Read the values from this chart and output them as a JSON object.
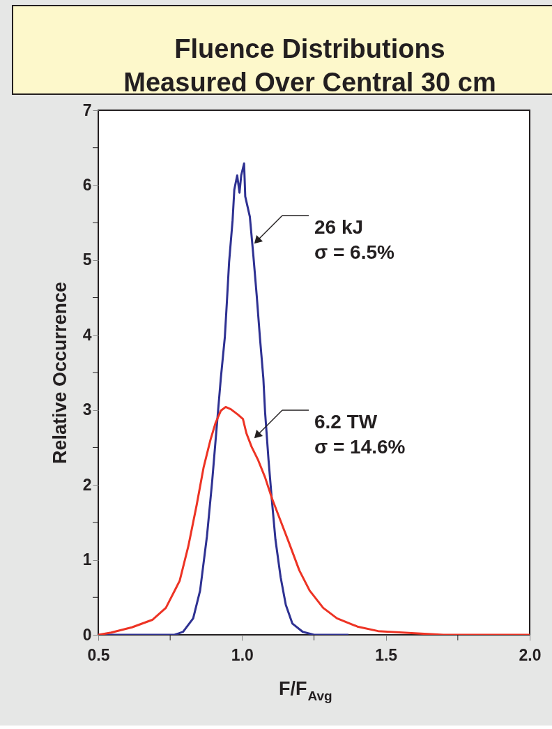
{
  "chart_data": {
    "type": "line",
    "title": "Fluence Distributions\nMeasured Over Central 30 cm",
    "xlabel": "F/F$_{Avg}$",
    "ylabel": "Relative Occurrence",
    "xlim": [
      0.5,
      2.0
    ],
    "xticks": [
      0.5,
      {
        "value": 0.75,
        "label": null
      },
      {
        "value": 1.0,
        "label": "1.0"
      },
      {
        "value": 1.25,
        "label": null
      },
      1.5,
      {
        "value": 1.75,
        "label": null
      },
      {
        "value": 2.0,
        "label": "2.0"
      }
    ],
    "ylim": [
      0,
      7
    ],
    "yticks": [
      0,
      {
        "value": 0.5,
        "label": null
      },
      1,
      {
        "value": 1.5,
        "label": null
      },
      2,
      {
        "value": 2.5,
        "label": null
      },
      3,
      {
        "value": 3.5,
        "label": null
      },
      4,
      {
        "value": 4.5,
        "label": null
      },
      5,
      {
        "value": 5.5,
        "label": null
      },
      6,
      {
        "value": 6.5,
        "label": null
      },
      7
    ],
    "grid": false,
    "legend": false,
    "line_style": "solid",
    "series": [
      {
        "color": "#2e3192",
        "x": [
          0.5,
          0.765,
          0.795,
          0.83,
          0.854,
          0.878,
          0.896,
          0.908,
          0.926,
          0.94,
          0.947,
          0.955,
          0.967,
          0.973,
          0.983,
          0.991,
          0.997,
          1.007,
          1.011,
          1.027,
          1.039,
          1.051,
          1.062,
          1.074,
          1.08,
          1.092,
          1.104,
          1.116,
          1.134,
          1.152,
          1.175,
          1.211,
          1.25,
          1.37
        ],
        "values": [
          0,
          0,
          0.04,
          0.22,
          0.59,
          1.32,
          2.05,
          2.6,
          3.42,
          3.97,
          4.43,
          4.98,
          5.53,
          5.94,
          6.13,
          5.9,
          6.13,
          6.29,
          5.85,
          5.58,
          5.07,
          4.52,
          3.97,
          3.42,
          2.97,
          2.33,
          1.78,
          1.27,
          0.77,
          0.4,
          0.15,
          0.04,
          0,
          0
        ]
      },
      {
        "color": "#ed3324",
        "x": [
          0.5,
          0.545,
          0.617,
          0.688,
          0.735,
          0.783,
          0.813,
          0.842,
          0.866,
          0.89,
          0.908,
          0.926,
          0.943,
          0.961,
          0.985,
          1.003,
          1.015,
          1.033,
          1.056,
          1.08,
          1.104,
          1.134,
          1.163,
          1.199,
          1.235,
          1.282,
          1.33,
          1.401,
          1.473,
          1.6,
          1.7,
          2.0
        ],
        "values": [
          0,
          0.03,
          0.1,
          0.2,
          0.36,
          0.72,
          1.18,
          1.73,
          2.23,
          2.6,
          2.83,
          2.99,
          3.04,
          3.01,
          2.94,
          2.88,
          2.69,
          2.51,
          2.33,
          2.1,
          1.82,
          1.52,
          1.23,
          0.86,
          0.59,
          0.36,
          0.22,
          0.11,
          0.05,
          0.02,
          0,
          0
        ]
      }
    ],
    "annotations": [
      "26 kJ\nσ = 6.5%",
      "6.2 TW\nσ = 14.6%"
    ]
  }
}
